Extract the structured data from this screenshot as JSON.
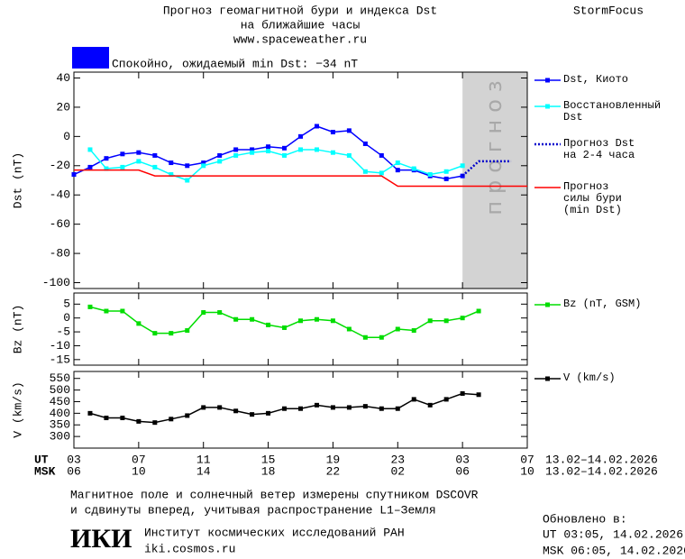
{
  "header": {
    "title_lines": [
      "Прогноз геомагнитной бури и индекса Dst",
      "на ближайшие часы",
      "www.spaceweather.ru"
    ],
    "brand": "StormFocus",
    "status": {
      "text": "Спокойно, ожидаемый min Dst: −34 nT",
      "color": "#0000ff"
    }
  },
  "chart_data": [
    {
      "type": "line",
      "ylabel": "Dst (nT)",
      "xlim": [
        0,
        28
      ],
      "xticks": [
        0,
        4,
        8,
        12,
        16,
        20,
        24,
        28
      ],
      "ylim": [
        -104,
        44
      ],
      "yticks": [
        40,
        20,
        0,
        -20,
        -40,
        -60,
        -80,
        -100
      ],
      "forecast_region": {
        "start": 24,
        "label": "прогноз",
        "color": "#d3d3d3"
      },
      "series": [
        {
          "name": "Dst, Киото",
          "color": "#0000ff",
          "marker": "square",
          "x": [
            0,
            1,
            2,
            3,
            4,
            5,
            6,
            7,
            8,
            9,
            10,
            11,
            12,
            13,
            14,
            15,
            16,
            17,
            18,
            19,
            20,
            21,
            22,
            23,
            24
          ],
          "values": [
            -26,
            -21,
            -15,
            -12,
            -11,
            -13,
            -18,
            -20,
            -18,
            -13,
            -9,
            -9,
            -7,
            -8,
            0,
            7,
            3,
            4,
            -5,
            -13,
            -23,
            -23,
            -27,
            -29,
            -27
          ]
        },
        {
          "name": "Восстановленный\nDst",
          "color": "#00ffff",
          "marker": "square",
          "x": [
            1,
            2,
            3,
            4,
            5,
            6,
            7,
            8,
            9,
            10,
            11,
            12,
            13,
            14,
            15,
            16,
            17,
            18,
            19,
            20,
            21,
            22,
            23,
            24
          ],
          "values": [
            -9,
            -22,
            -21,
            -17,
            -21,
            -26,
            -30,
            -20,
            -17,
            -13,
            -11,
            -10,
            -13,
            -9,
            -9,
            -11,
            -13,
            -24,
            -25,
            -18,
            -22,
            -26,
            -24,
            -20
          ]
        },
        {
          "name": "Прогноз Dst\nна 2-4 часа",
          "color": "#0000cc",
          "dash": "dotted",
          "x": [
            24,
            25,
            26,
            27
          ],
          "values": [
            -27,
            -17,
            -17,
            -17
          ]
        },
        {
          "name": "Прогноз\nсилы бури\n(min Dst)",
          "color": "#ff0000",
          "x": [
            0,
            4,
            5,
            19,
            20,
            28
          ],
          "values": [
            -23,
            -23,
            -27,
            -27,
            -34,
            -34
          ]
        }
      ]
    },
    {
      "type": "line",
      "ylabel": "Bz (nT)",
      "xlim": [
        0,
        28
      ],
      "xticks": [
        0,
        4,
        8,
        12,
        16,
        20,
        24,
        28
      ],
      "ylim": [
        -17,
        9
      ],
      "yticks": [
        5,
        0,
        -5,
        -10,
        -15
      ],
      "series": [
        {
          "name": "Bz (nT, GSM)",
          "color": "#00dd00",
          "marker": "square",
          "x": [
            1,
            2,
            3,
            4,
            5,
            6,
            7,
            8,
            9,
            10,
            11,
            12,
            13,
            14,
            15,
            16,
            17,
            18,
            19,
            20,
            21,
            22,
            23,
            24,
            25
          ],
          "values": [
            4,
            2.5,
            2.5,
            -2,
            -5.5,
            -5.5,
            -4.5,
            2,
            2,
            -0.5,
            -0.5,
            -2.5,
            -3.5,
            -1,
            -0.5,
            -1,
            -4,
            -7,
            -7,
            -4,
            -4.5,
            -1,
            -1,
            0,
            2.5
          ]
        }
      ]
    },
    {
      "type": "line",
      "ylabel": "V (km/s)",
      "xlim": [
        0,
        28
      ],
      "xticks": [
        {
          "value": 0,
          "label": "03"
        },
        {
          "value": 4,
          "label": "07"
        },
        {
          "value": 8,
          "label": "11"
        },
        {
          "value": 12,
          "label": "15"
        },
        {
          "value": 16,
          "label": "19"
        },
        {
          "value": 20,
          "label": "23"
        },
        {
          "value": 24,
          "label": "03"
        },
        {
          "value": 28,
          "label": "07"
        }
      ],
      "xticks_msk": [
        {
          "value": 0,
          "label": "06"
        },
        {
          "value": 4,
          "label": "10"
        },
        {
          "value": 8,
          "label": "14"
        },
        {
          "value": 12,
          "label": "18"
        },
        {
          "value": 16,
          "label": "22"
        },
        {
          "value": 20,
          "label": "02"
        },
        {
          "value": 24,
          "label": "06"
        },
        {
          "value": 28,
          "label": "10"
        }
      ],
      "xlabel_ut": "UT",
      "xlabel_msk": "MSK",
      "date_range_ut": "13.02–14.02.2026",
      "date_range_msk": "13.02–14.02.2026",
      "ylim": [
        250,
        580
      ],
      "yticks": [
        550,
        500,
        450,
        400,
        350,
        300
      ],
      "series": [
        {
          "name": "V (km/s)",
          "color": "#000000",
          "marker": "square",
          "x": [
            1,
            2,
            3,
            4,
            5,
            6,
            7,
            8,
            9,
            10,
            11,
            12,
            13,
            14,
            15,
            16,
            17,
            18,
            19,
            20,
            21,
            22,
            23,
            24,
            25
          ],
          "values": [
            400,
            380,
            380,
            365,
            360,
            375,
            390,
            425,
            425,
            410,
            395,
            400,
            420,
            420,
            435,
            425,
            425,
            430,
            420,
            420,
            460,
            435,
            460,
            485,
            480
          ]
        }
      ]
    }
  ],
  "footer": {
    "note_lines": [
      "Магнитное поле и солнечный ветер измерены спутником DSCOVR",
      "и сдвинуты вперед, учитывая распространение L1–Земля"
    ],
    "updated_title": "Обновлено в:",
    "updated_ut": "UT  03:05, 14.02.2026",
    "updated_msk": "MSK 06:05, 14.02.2026",
    "logo": "ИКИ",
    "institute": "Институт космических исследований РАН",
    "url": "iki.cosmos.ru"
  }
}
